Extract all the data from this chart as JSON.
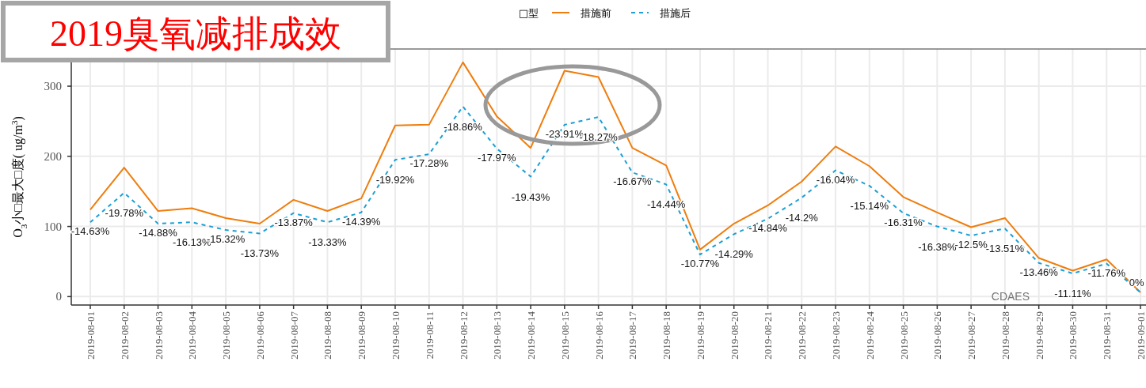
{
  "chart_data": {
    "type": "line",
    "title": "2019臭氧减排成效",
    "ylabel": "O$_{3}$小□最大□度( ug/m$^{3}$)",
    "legend_title": "□型",
    "categories": [
      "2019-08-01",
      "2019-08-02",
      "2019-08-03",
      "2019-08-04",
      "2019-08-05",
      "2019-08-06",
      "2019-08-07",
      "2019-08-08",
      "2019-08-09",
      "2019-08-10",
      "2019-08-11",
      "2019-08-12",
      "2019-08-13",
      "2019-08-14",
      "2019-08-15",
      "2019-08-16",
      "2019-08-17",
      "2019-08-18",
      "2019-08-19",
      "2019-08-20",
      "2019-08-21",
      "2019-08-22",
      "2019-08-23",
      "2019-08-24",
      "2019-08-25",
      "2019-08-26",
      "2019-08-27",
      "2019-08-28",
      "2019-08-29",
      "2019-08-30",
      "2019-08-31",
      "2019-09-01"
    ],
    "series": [
      {
        "name": "措施前",
        "color": "#ef7d0d",
        "line_style": "solid",
        "values": [
          124,
          184,
          122,
          126,
          112,
          104,
          138,
          122,
          140,
          244,
          245,
          334,
          257,
          212,
          322,
          313,
          212,
          187,
          67,
          104,
          130,
          164,
          214,
          186,
          142,
          120,
          99,
          112,
          55,
          37,
          53,
          6
        ]
      },
      {
        "name": "措施后",
        "color": "#1c9fd4",
        "line_style": "dashed",
        "values": [
          106,
          148,
          104,
          106,
          95,
          90,
          119,
          106,
          120,
          195,
          203,
          271,
          211,
          171,
          245,
          256,
          177,
          160,
          60,
          89,
          111,
          141,
          180,
          158,
          119,
          100,
          87,
          97,
          48,
          33,
          47,
          6
        ]
      }
    ],
    "ylim": [
      -12,
      353
    ],
    "yticks": [
      0,
      100,
      200,
      300
    ],
    "grid": true,
    "legend": "top",
    "annotations": [
      {
        "text": "-14.63%",
        "x": "2019-08-01",
        "y": 106
      },
      {
        "text": "-19.78%",
        "x": "2019-08-02",
        "y": 148
      },
      {
        "text": "-14.88%",
        "x": "2019-08-03",
        "y": 104
      },
      {
        "text": "-16.13%",
        "x": "2019-08-04",
        "y": 106
      },
      {
        "text": "-15.32%",
        "x": "2019-08-05",
        "y": 95
      },
      {
        "text": "-13.73%",
        "x": "2019-08-06",
        "y": 90
      },
      {
        "text": "-13.87%",
        "x": "2019-08-07",
        "y": 119
      },
      {
        "text": "-13.33%",
        "x": "2019-08-08",
        "y": 106
      },
      {
        "text": "-14.39%",
        "x": "2019-08-09",
        "y": 120
      },
      {
        "text": "-19.92%",
        "x": "2019-08-10",
        "y": 195
      },
      {
        "text": "-17.28%",
        "x": "2019-08-11",
        "y": 203
      },
      {
        "text": "-18.86%",
        "x": "2019-08-12",
        "y": 271
      },
      {
        "text": "-17.97%",
        "x": "2019-08-13",
        "y": 211
      },
      {
        "text": "-19.43%",
        "x": "2019-08-14",
        "y": 171
      },
      {
        "text": "-23.91%",
        "x": "2019-08-15",
        "y": 245
      },
      {
        "text": "-18.27%",
        "x": "2019-08-16",
        "y": 256
      },
      {
        "text": "-16.67%",
        "x": "2019-08-17",
        "y": 177
      },
      {
        "text": "-14.44%",
        "x": "2019-08-18",
        "y": 160
      },
      {
        "text": "-10.77%",
        "x": "2019-08-19",
        "y": 60
      },
      {
        "text": "-14.29%",
        "x": "2019-08-20",
        "y": 89
      },
      {
        "text": "-14.84%",
        "x": "2019-08-21",
        "y": 111
      },
      {
        "text": "-14.2%",
        "x": "2019-08-22",
        "y": 141
      },
      {
        "text": "-16.04%",
        "x": "2019-08-23",
        "y": 180
      },
      {
        "text": "-15.14%",
        "x": "2019-08-24",
        "y": 158
      },
      {
        "text": "-16.31%",
        "x": "2019-08-25",
        "y": 119
      },
      {
        "text": "-16.38%",
        "x": "2019-08-26",
        "y": 100
      },
      {
        "text": "-12.5%",
        "x": "2019-08-27",
        "y": 87
      },
      {
        "text": "-13.51%",
        "x": "2019-08-28",
        "y": 97
      },
      {
        "text": "-13.46%",
        "x": "2019-08-29",
        "y": 48
      },
      {
        "text": "-11.11%",
        "x": "2019-08-30",
        "y": 33
      },
      {
        "text": "-11.76%",
        "x": "2019-08-31",
        "y": 47
      },
      {
        "text": "0%",
        "x": "2019-09-01",
        "y": 6
      },
      "CDAES"
    ]
  }
}
